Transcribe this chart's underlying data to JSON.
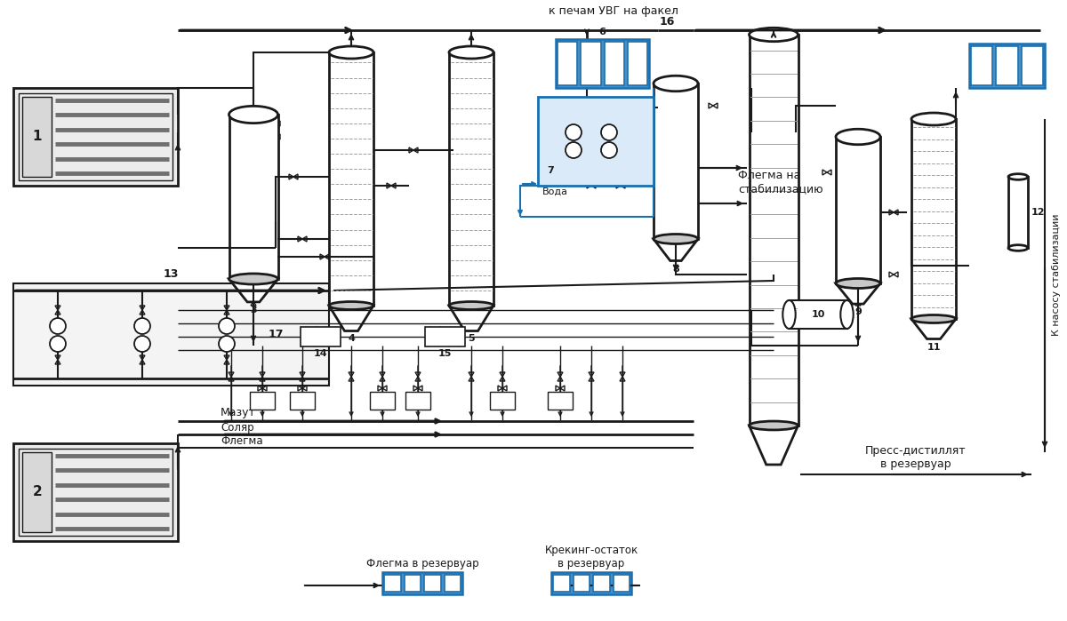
{
  "bg_color": "#ffffff",
  "line_color": "#1a1a1a",
  "blue_color": "#1a6faf",
  "blue_fill": "#4a8fc4",
  "gray_fill": "#c8c8c8",
  "dark_gray": "#707070",
  "med_gray": "#a0a0a0",
  "label_16": "16",
  "label_к_печам": "к печам УВГ на факел",
  "label_флегма_на_стаб": "Флегма на\nстабилизацию",
  "label_пресс_дист": "Пресс-дистиллят\nв резервуар",
  "label_мазут": "Мазут",
  "label_соляр": "Соляр",
  "label_флегма_bot": "Флегма",
  "label_флегма_рез": "Флегма в резервуар",
  "label_крекинг": "Крекинг-остаток\nв резервуар",
  "label_к_насосу": "К насосу стабилизации",
  "label_вода": "Вода",
  "label_13": "13",
  "label_17": "17"
}
